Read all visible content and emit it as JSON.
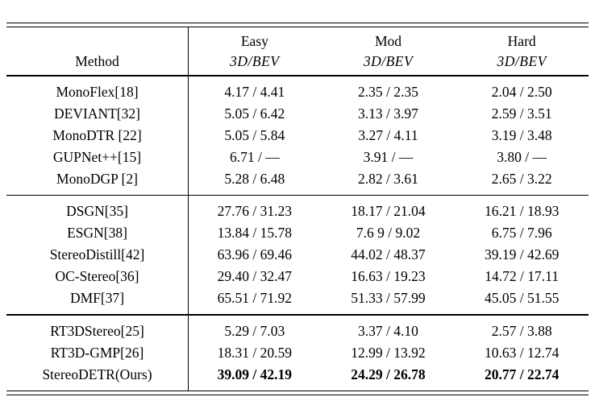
{
  "table": {
    "header": {
      "method": "Method",
      "cols": [
        {
          "name": "Easy",
          "metric": "3D/BEV"
        },
        {
          "name": "Mod",
          "metric": "3D/BEV"
        },
        {
          "name": "Hard",
          "metric": "3D/BEV"
        }
      ]
    },
    "groups": [
      {
        "rows": [
          {
            "method": "MonoFlex[18]",
            "easy": "4.17 / 4.41",
            "mod": "2.35 / 2.35",
            "hard": "2.04 / 2.50"
          },
          {
            "method": "DEVIANT[32]",
            "easy": "5.05 / 6.42",
            "mod": "3.13 / 3.97",
            "hard": "2.59 / 3.51"
          },
          {
            "method": "MonoDTR [22]",
            "easy": "5.05 / 5.84",
            "mod": "3.27 / 4.11",
            "hard": "3.19 / 3.48"
          },
          {
            "method": "GUPNet++[15]",
            "easy": "6.71 /  —",
            "mod": "3.91 /  —",
            "hard": "3.80 /  —"
          },
          {
            "method": "MonoDGP [2]",
            "easy": "5.28 / 6.48",
            "mod": "2.82 / 3.61",
            "hard": "2.65 / 3.22"
          }
        ]
      },
      {
        "rows": [
          {
            "method": "DSGN[35]",
            "easy": "27.76 / 31.23",
            "mod": "18.17 / 21.04",
            "hard": "16.21 / 18.93"
          },
          {
            "method": "ESGN[38]",
            "easy": "13.84 / 15.78",
            "mod": "7.6 9 / 9.02",
            "hard": "6.75 / 7.96"
          },
          {
            "method": "StereoDistill[42]",
            "easy": "63.96 / 69.46",
            "mod": "44.02 / 48.37",
            "hard": "39.19 / 42.69"
          },
          {
            "method": "OC-Stereo[36]",
            "easy": "29.40 / 32.47",
            "mod": "16.63 / 19.23",
            "hard": "14.72 / 17.11"
          },
          {
            "method": "DMF[37]",
            "easy": "65.51 / 71.92",
            "mod": "51.33 / 57.99",
            "hard": "45.05 / 51.55"
          }
        ]
      },
      {
        "rows": [
          {
            "method": "RT3DStereo[25]",
            "easy": "5.29 / 7.03",
            "mod": "3.37 / 4.10",
            "hard": "2.57 / 3.88"
          },
          {
            "method": "RT3D-GMP[26]",
            "easy": "18.31 / 20.59",
            "mod": "12.99 / 13.92",
            "hard": "10.63 / 12.74"
          },
          {
            "method": "StereoDETR(Ours)",
            "easy": "39.09 / 42.19",
            "mod": "24.29 / 26.78",
            "hard": "20.77 / 22.74",
            "bold": true
          }
        ]
      }
    ]
  }
}
